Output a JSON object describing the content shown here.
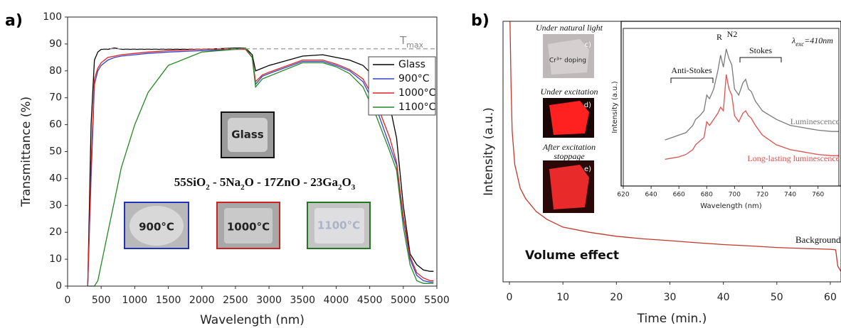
{
  "chart_data": [
    {
      "type": "line",
      "panel_label": "a)",
      "xlabel": "Wavelength (nm)",
      "ylabel": "Transmittance (%)",
      "x": [
        300,
        350,
        400,
        450,
        500,
        600,
        700,
        800,
        1000,
        1200,
        1500,
        2000,
        2500,
        2650,
        2750,
        2800,
        2900,
        3000,
        3500,
        3800,
        4000,
        4200,
        4400,
        4600,
        4800,
        4900,
        5000,
        5100,
        5200,
        5300,
        5400,
        5450
      ],
      "series": [
        {
          "name": "Glass",
          "color": "#000000",
          "values": [
            0,
            60,
            84,
            87,
            88,
            88,
            88.5,
            88,
            88,
            88,
            88,
            88,
            88.5,
            88.5,
            86,
            80,
            81,
            82,
            85.5,
            86,
            85,
            84,
            82,
            77,
            67,
            55,
            30,
            12,
            8,
            6,
            5.5,
            5.5
          ]
        },
        {
          "name": "900°C",
          "color": "#3344cc",
          "values": [
            0,
            40,
            75,
            80,
            82,
            84,
            85,
            85.5,
            86,
            86.5,
            87,
            87.5,
            88,
            88,
            85,
            75,
            78,
            79,
            83.5,
            83.5,
            82,
            80,
            76,
            66,
            52,
            45,
            25,
            10,
            4,
            2,
            1.5,
            1.5
          ]
        },
        {
          "name": "1000°C",
          "color": "#dd2222",
          "values": [
            0,
            45,
            77,
            81,
            83,
            85,
            85.5,
            86,
            86.5,
            87,
            87.5,
            88,
            88,
            88,
            85,
            76,
            78.5,
            79.5,
            84,
            84,
            82.5,
            80.5,
            77,
            68,
            55,
            46,
            26,
            11,
            5,
            3,
            2,
            2
          ]
        },
        {
          "name": "1100°C",
          "color": "#228822",
          "values": [
            0,
            0,
            0,
            2,
            8,
            20,
            32,
            44,
            60,
            72,
            82,
            87,
            88,
            88.5,
            85,
            74,
            77,
            78,
            83,
            83,
            81.5,
            79,
            74,
            63,
            50,
            43,
            22,
            8,
            2,
            1,
            1,
            1
          ]
        }
      ],
      "xlim": [
        0,
        5500
      ],
      "xticks": [
        0,
        500,
        1000,
        1500,
        2000,
        2500,
        3000,
        3500,
        4000,
        4500,
        5000,
        5500
      ],
      "ylim": [
        0,
        100
      ],
      "yticks": [
        0,
        10,
        20,
        30,
        40,
        50,
        60,
        70,
        80,
        90,
        100
      ],
      "legend": "upper right",
      "tmax": {
        "text": "T",
        "subscript": "max",
        "value": 88.2
      },
      "formula": [
        "55SiO",
        "2",
        " - 5Na",
        "2",
        "O - 17ZnO - 23Ga",
        "2",
        "O",
        "3"
      ],
      "photo_labels": [
        "Glass",
        "900°C",
        "1000°C",
        "1100°C"
      ]
    },
    {
      "type": "line",
      "panel_label": "b)",
      "xlabel": "Time (min.)",
      "ylabel": "Intensity (a.u.)",
      "x": [
        0.1,
        0.3,
        0.5,
        1,
        2,
        3,
        5,
        7,
        10,
        15,
        20,
        25,
        30,
        35,
        40,
        45,
        50,
        55,
        60,
        61,
        61.4,
        62
      ],
      "series": [
        {
          "color": "#c0392b",
          "values": [
            100,
            75,
            58,
            45,
            36,
            32,
            27,
            24,
            21,
            19,
            17.5,
            16.5,
            15.8,
            15,
            14.3,
            13.8,
            13.2,
            12.8,
            12.5,
            12.3,
            6,
            4
          ]
        }
      ],
      "xlim": [
        -1.2,
        62
      ],
      "xticks": [
        0,
        10,
        20,
        30,
        40,
        50,
        60
      ],
      "ylim": [
        0,
        100
      ],
      "annotations": [
        "Volume effect",
        "Background"
      ],
      "photos": [
        {
          "caption": [
            "Under natural light"
          ],
          "tag": "c)",
          "text": "Cr³⁺ doping"
        },
        {
          "caption": [
            "Under excitation"
          ],
          "tag": "d)"
        },
        {
          "caption": [
            "After excitation",
            "stoppage"
          ],
          "tag": "e)"
        }
      ]
    },
    {
      "type": "line",
      "xlabel": "Wavelength (nm)",
      "ylabel": "Intensity (a.u.)",
      "x": [
        650,
        655,
        660,
        665,
        670,
        672,
        675,
        678,
        680,
        682,
        685,
        688,
        690,
        692,
        694,
        696,
        698,
        700,
        703,
        706,
        708,
        710,
        712,
        715,
        720,
        730,
        740,
        750,
        760,
        770,
        775
      ],
      "series": [
        {
          "name": "Luminescence",
          "color": "#7a7a7a",
          "values": [
            18,
            20,
            22,
            24,
            30,
            35,
            38,
            42,
            55,
            52,
            60,
            75,
            88,
            78,
            93,
            85,
            80,
            60,
            55,
            65,
            68,
            60,
            58,
            50,
            42,
            35,
            30,
            28,
            26,
            25,
            25
          ]
        },
        {
          "name": "Long-lasting luminescence",
          "color": "#d9534f",
          "values": [
            2,
            3,
            4,
            6,
            10,
            14,
            17,
            20,
            33,
            30,
            35,
            40,
            45,
            42,
            72,
            60,
            55,
            38,
            33,
            40,
            42,
            38,
            36,
            30,
            22,
            14,
            10,
            8,
            6,
            5,
            5
          ]
        }
      ],
      "xlim": [
        620,
        775
      ],
      "xticks": [
        620,
        640,
        660,
        680,
        700,
        720,
        740,
        760
      ],
      "ylim": [
        -20,
        110
      ],
      "excitation": [
        "λ",
        "exc",
        "=410nm"
      ],
      "annotations": [
        "Anti-Stokes",
        "R",
        "N2",
        "Stokes"
      ]
    }
  ]
}
